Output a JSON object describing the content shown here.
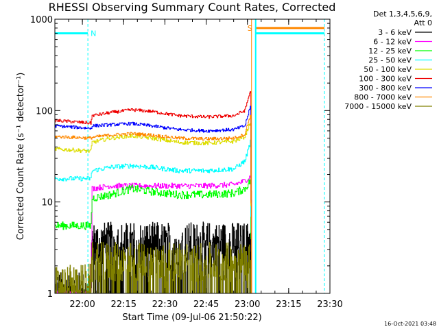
{
  "chart_data": {
    "type": "line",
    "title": "RHESSI Observing Summary Count Rates, Corrected",
    "xlabel": "Start Time (09-Jul-06 21:50:22)",
    "ylabel": "Corrected Count Rate (s⁻¹ detector⁻¹)",
    "ylog": true,
    "ylim": [
      1,
      1000
    ],
    "xlim_minutes": [
      0,
      100
    ],
    "x_ticks": [
      {
        "label": "22:00",
        "minute": 10
      },
      {
        "label": "22:15",
        "minute": 25
      },
      {
        "label": "22:30",
        "minute": 40
      },
      {
        "label": "22:45",
        "minute": 55
      },
      {
        "label": "23:00",
        "minute": 70
      },
      {
        "label": "23:15",
        "minute": 85
      },
      {
        "label": "23:30",
        "minute": 100
      }
    ],
    "y_ticks": [
      {
        "label": "1",
        "value": 1
      },
      {
        "label": "10",
        "value": 10
      },
      {
        "label": "100",
        "value": 100
      },
      {
        "label": "1000",
        "value": 1000
      }
    ],
    "legend_header": [
      "Det 1,3,4,5,6,9,",
      "Att 0"
    ],
    "legend_position": "right",
    "timestamp": "16-Oct-2021 03:48",
    "series": [
      {
        "name": "3 - 6 keV",
        "color": "#000000",
        "noise": 0.55,
        "dense": true,
        "points": [
          [
            0,
            1.0
          ],
          [
            13,
            1.0
          ],
          [
            13.5,
            3.5
          ],
          [
            25,
            3.5
          ],
          [
            45,
            3.5
          ],
          [
            70,
            3.5
          ],
          [
            71,
            5
          ],
          [
            71.5,
            1
          ]
        ]
      },
      {
        "name": "6 - 12 keV",
        "color": "#ff00ff",
        "noise": 0.07,
        "points": [
          [
            0,
            1.0
          ],
          [
            10,
            1.0
          ],
          [
            13,
            1.0
          ],
          [
            13.5,
            14
          ],
          [
            20,
            15
          ],
          [
            40,
            15
          ],
          [
            55,
            15
          ],
          [
            65,
            15.5
          ],
          [
            69,
            17
          ],
          [
            71,
            19
          ],
          [
            71.5,
            1
          ]
        ]
      },
      {
        "name": "12 - 25 keV",
        "color": "#00ff00",
        "noise": 0.1,
        "points": [
          [
            0,
            5.5
          ],
          [
            13,
            5.5
          ],
          [
            13.5,
            11
          ],
          [
            20,
            12
          ],
          [
            28,
            14
          ],
          [
            35,
            13
          ],
          [
            45,
            12
          ],
          [
            55,
            12
          ],
          [
            65,
            12.5
          ],
          [
            69,
            14
          ],
          [
            71,
            17
          ],
          [
            71.5,
            1
          ]
        ]
      },
      {
        "name": "25 - 50 keV",
        "color": "#00ffff",
        "noise": 0.06,
        "points": [
          [
            0,
            18
          ],
          [
            13,
            18
          ],
          [
            13.5,
            22
          ],
          [
            20,
            24
          ],
          [
            28,
            25
          ],
          [
            35,
            24
          ],
          [
            45,
            22
          ],
          [
            55,
            22
          ],
          [
            65,
            23
          ],
          [
            69,
            28
          ],
          [
            71,
            45
          ],
          [
            71.5,
            1
          ]
        ]
      },
      {
        "name": "50 - 100 keV",
        "color": "#dddd00",
        "noise": 0.05,
        "points": [
          [
            0,
            38
          ],
          [
            13,
            36
          ],
          [
            13.5,
            45
          ],
          [
            20,
            50
          ],
          [
            28,
            53
          ],
          [
            35,
            50
          ],
          [
            45,
            45
          ],
          [
            55,
            44
          ],
          [
            65,
            46
          ],
          [
            69,
            52
          ],
          [
            71,
            75
          ],
          [
            71.5,
            1
          ]
        ]
      },
      {
        "name": "100 - 300 keV",
        "color": "#ee0000",
        "noise": 0.04,
        "points": [
          [
            0,
            78
          ],
          [
            13,
            73
          ],
          [
            13.5,
            88
          ],
          [
            20,
            95
          ],
          [
            28,
            102
          ],
          [
            35,
            98
          ],
          [
            45,
            88
          ],
          [
            55,
            85
          ],
          [
            65,
            88
          ],
          [
            69,
            100
          ],
          [
            71,
            165
          ],
          [
            71.5,
            1
          ]
        ]
      },
      {
        "name": "300 - 800 keV",
        "color": "#0000ff",
        "noise": 0.04,
        "points": [
          [
            0,
            68
          ],
          [
            13,
            64
          ],
          [
            13.5,
            68
          ],
          [
            20,
            70
          ],
          [
            28,
            72
          ],
          [
            35,
            68
          ],
          [
            45,
            62
          ],
          [
            55,
            60
          ],
          [
            65,
            62
          ],
          [
            69,
            68
          ],
          [
            71,
            110
          ],
          [
            71.5,
            1
          ]
        ]
      },
      {
        "name": "800 - 7000 keV",
        "color": "#ff8800",
        "noise": 0.04,
        "points": [
          [
            0,
            52
          ],
          [
            13,
            50
          ],
          [
            13.5,
            51
          ],
          [
            20,
            54
          ],
          [
            28,
            56
          ],
          [
            35,
            54
          ],
          [
            45,
            50
          ],
          [
            55,
            49
          ],
          [
            65,
            50
          ],
          [
            69,
            55
          ],
          [
            71,
            90
          ],
          [
            71.5,
            1
          ]
        ]
      },
      {
        "name": "7000 - 15000 keV",
        "color": "#808000",
        "noise": 0.5,
        "dense": true,
        "points": [
          [
            0,
            1.2
          ],
          [
            13,
            1.3
          ],
          [
            13.5,
            2.2
          ],
          [
            45,
            2.2
          ],
          [
            70,
            2.2
          ],
          [
            71,
            3.5
          ],
          [
            71.5,
            1
          ]
        ]
      }
    ],
    "flag_bars": [
      {
        "label": "N",
        "color": "#00ffff",
        "level": 700,
        "x0": 0,
        "x1": 12,
        "label_x": 13,
        "dashed_x": 12
      },
      {
        "label": "S",
        "color": "#ff8800",
        "level": 800,
        "x0": 73,
        "x1": 98,
        "label_x": 71,
        "solid_x": 71.5
      }
    ],
    "eclipse": {
      "color": "#00ffff",
      "solid_x": 73,
      "dashed_x": 98,
      "level": 700
    }
  }
}
